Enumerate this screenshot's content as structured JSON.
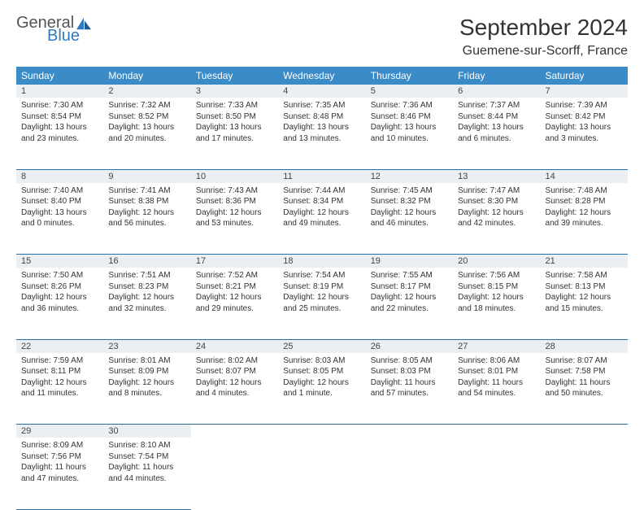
{
  "brand": {
    "general": "General",
    "blue": "Blue"
  },
  "title": "September 2024",
  "location": "Guemene-sur-Scorff, France",
  "colors": {
    "header_bg": "#3b8bc7",
    "header_text": "#ffffff",
    "daynum_bg": "#eceff1",
    "border": "#2a6fa3",
    "brand_blue": "#2f7bbf"
  },
  "weekdays": [
    "Sunday",
    "Monday",
    "Tuesday",
    "Wednesday",
    "Thursday",
    "Friday",
    "Saturday"
  ],
  "weeks": [
    [
      {
        "n": "1",
        "sr": "Sunrise: 7:30 AM",
        "ss": "Sunset: 8:54 PM",
        "dl": "Daylight: 13 hours and 23 minutes."
      },
      {
        "n": "2",
        "sr": "Sunrise: 7:32 AM",
        "ss": "Sunset: 8:52 PM",
        "dl": "Daylight: 13 hours and 20 minutes."
      },
      {
        "n": "3",
        "sr": "Sunrise: 7:33 AM",
        "ss": "Sunset: 8:50 PM",
        "dl": "Daylight: 13 hours and 17 minutes."
      },
      {
        "n": "4",
        "sr": "Sunrise: 7:35 AM",
        "ss": "Sunset: 8:48 PM",
        "dl": "Daylight: 13 hours and 13 minutes."
      },
      {
        "n": "5",
        "sr": "Sunrise: 7:36 AM",
        "ss": "Sunset: 8:46 PM",
        "dl": "Daylight: 13 hours and 10 minutes."
      },
      {
        "n": "6",
        "sr": "Sunrise: 7:37 AM",
        "ss": "Sunset: 8:44 PM",
        "dl": "Daylight: 13 hours and 6 minutes."
      },
      {
        "n": "7",
        "sr": "Sunrise: 7:39 AM",
        "ss": "Sunset: 8:42 PM",
        "dl": "Daylight: 13 hours and 3 minutes."
      }
    ],
    [
      {
        "n": "8",
        "sr": "Sunrise: 7:40 AM",
        "ss": "Sunset: 8:40 PM",
        "dl": "Daylight: 13 hours and 0 minutes."
      },
      {
        "n": "9",
        "sr": "Sunrise: 7:41 AM",
        "ss": "Sunset: 8:38 PM",
        "dl": "Daylight: 12 hours and 56 minutes."
      },
      {
        "n": "10",
        "sr": "Sunrise: 7:43 AM",
        "ss": "Sunset: 8:36 PM",
        "dl": "Daylight: 12 hours and 53 minutes."
      },
      {
        "n": "11",
        "sr": "Sunrise: 7:44 AM",
        "ss": "Sunset: 8:34 PM",
        "dl": "Daylight: 12 hours and 49 minutes."
      },
      {
        "n": "12",
        "sr": "Sunrise: 7:45 AM",
        "ss": "Sunset: 8:32 PM",
        "dl": "Daylight: 12 hours and 46 minutes."
      },
      {
        "n": "13",
        "sr": "Sunrise: 7:47 AM",
        "ss": "Sunset: 8:30 PM",
        "dl": "Daylight: 12 hours and 42 minutes."
      },
      {
        "n": "14",
        "sr": "Sunrise: 7:48 AM",
        "ss": "Sunset: 8:28 PM",
        "dl": "Daylight: 12 hours and 39 minutes."
      }
    ],
    [
      {
        "n": "15",
        "sr": "Sunrise: 7:50 AM",
        "ss": "Sunset: 8:26 PM",
        "dl": "Daylight: 12 hours and 36 minutes."
      },
      {
        "n": "16",
        "sr": "Sunrise: 7:51 AM",
        "ss": "Sunset: 8:23 PM",
        "dl": "Daylight: 12 hours and 32 minutes."
      },
      {
        "n": "17",
        "sr": "Sunrise: 7:52 AM",
        "ss": "Sunset: 8:21 PM",
        "dl": "Daylight: 12 hours and 29 minutes."
      },
      {
        "n": "18",
        "sr": "Sunrise: 7:54 AM",
        "ss": "Sunset: 8:19 PM",
        "dl": "Daylight: 12 hours and 25 minutes."
      },
      {
        "n": "19",
        "sr": "Sunrise: 7:55 AM",
        "ss": "Sunset: 8:17 PM",
        "dl": "Daylight: 12 hours and 22 minutes."
      },
      {
        "n": "20",
        "sr": "Sunrise: 7:56 AM",
        "ss": "Sunset: 8:15 PM",
        "dl": "Daylight: 12 hours and 18 minutes."
      },
      {
        "n": "21",
        "sr": "Sunrise: 7:58 AM",
        "ss": "Sunset: 8:13 PM",
        "dl": "Daylight: 12 hours and 15 minutes."
      }
    ],
    [
      {
        "n": "22",
        "sr": "Sunrise: 7:59 AM",
        "ss": "Sunset: 8:11 PM",
        "dl": "Daylight: 12 hours and 11 minutes."
      },
      {
        "n": "23",
        "sr": "Sunrise: 8:01 AM",
        "ss": "Sunset: 8:09 PM",
        "dl": "Daylight: 12 hours and 8 minutes."
      },
      {
        "n": "24",
        "sr": "Sunrise: 8:02 AM",
        "ss": "Sunset: 8:07 PM",
        "dl": "Daylight: 12 hours and 4 minutes."
      },
      {
        "n": "25",
        "sr": "Sunrise: 8:03 AM",
        "ss": "Sunset: 8:05 PM",
        "dl": "Daylight: 12 hours and 1 minute."
      },
      {
        "n": "26",
        "sr": "Sunrise: 8:05 AM",
        "ss": "Sunset: 8:03 PM",
        "dl": "Daylight: 11 hours and 57 minutes."
      },
      {
        "n": "27",
        "sr": "Sunrise: 8:06 AM",
        "ss": "Sunset: 8:01 PM",
        "dl": "Daylight: 11 hours and 54 minutes."
      },
      {
        "n": "28",
        "sr": "Sunrise: 8:07 AM",
        "ss": "Sunset: 7:58 PM",
        "dl": "Daylight: 11 hours and 50 minutes."
      }
    ],
    [
      {
        "n": "29",
        "sr": "Sunrise: 8:09 AM",
        "ss": "Sunset: 7:56 PM",
        "dl": "Daylight: 11 hours and 47 minutes."
      },
      {
        "n": "30",
        "sr": "Sunrise: 8:10 AM",
        "ss": "Sunset: 7:54 PM",
        "dl": "Daylight: 11 hours and 44 minutes."
      },
      null,
      null,
      null,
      null,
      null
    ]
  ]
}
